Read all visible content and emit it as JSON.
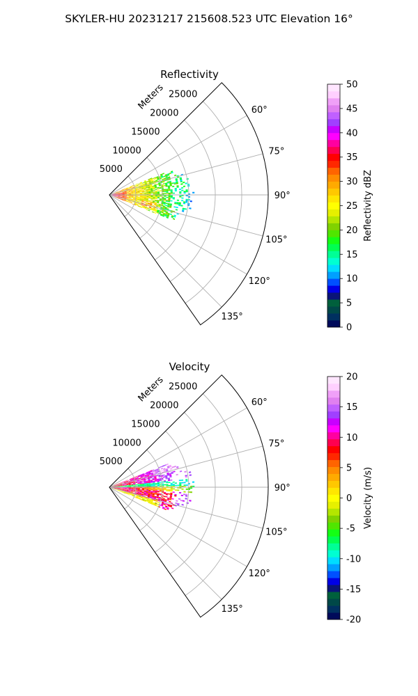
{
  "figure": {
    "title": "SKYLER-HU  20231217  215608.523 UTC Elevation 16°"
  },
  "chart_data": [
    {
      "type": "heatmap",
      "title": "Reflectivity",
      "projection": "polar-sector",
      "range_label": "Meters",
      "range_ticks": [
        5000,
        10000,
        15000,
        20000,
        25000
      ],
      "range_max": 30000,
      "theta_ticks": [
        "60°",
        "75°",
        "90°",
        "105°",
        "120°",
        "135°"
      ],
      "theta_tick_values": [
        60,
        75,
        90,
        105,
        120,
        135
      ],
      "theta_range": [
        45,
        145
      ],
      "grid": true,
      "colorbar": {
        "label": "Reflectivity dBZ",
        "ticks": [
          0,
          5,
          10,
          15,
          20,
          25,
          30,
          35,
          40,
          45,
          50
        ],
        "range": [
          0,
          50
        ],
        "colors": [
          "#000a5a",
          "#003060",
          "#004848",
          "#00603c",
          "#0a1478",
          "#0000e6",
          "#0050ff",
          "#00a0ff",
          "#00dcff",
          "#00ffd2",
          "#00ff96",
          "#00ff50",
          "#14ff14",
          "#50e600",
          "#80d200",
          "#b4e600",
          "#e6f000",
          "#ffff00",
          "#ffe600",
          "#ffc800",
          "#ffaa00",
          "#ff8c00",
          "#ff6400",
          "#ff2800",
          "#ff0000",
          "#ff0050",
          "#ff00a0",
          "#ff00ff",
          "#c800ff",
          "#a040ff",
          "#c060ff",
          "#e080f0",
          "#f0a0f8",
          "#ffd0ff",
          "#ffe6ff"
        ]
      },
      "data_extent": {
        "range_max_m": 16500,
        "theta_min": 68,
        "theta_max": 112
      }
    },
    {
      "type": "heatmap",
      "title": "Velocity",
      "projection": "polar-sector",
      "range_label": "Meters",
      "range_ticks": [
        5000,
        10000,
        15000,
        20000,
        25000
      ],
      "range_max": 30000,
      "theta_ticks": [
        "60°",
        "75°",
        "90°",
        "105°",
        "120°",
        "135°"
      ],
      "theta_tick_values": [
        60,
        75,
        90,
        105,
        120,
        135
      ],
      "theta_range": [
        45,
        145
      ],
      "grid": true,
      "colorbar": {
        "label": "Velocity (m/s)",
        "ticks": [
          -20,
          -15,
          -10,
          -5,
          0,
          5,
          10,
          15,
          20
        ],
        "range": [
          -20,
          20
        ],
        "colors": [
          "#000a5a",
          "#003060",
          "#004848",
          "#00603c",
          "#0a1478",
          "#0000e6",
          "#0050ff",
          "#00a0ff",
          "#00dcff",
          "#00ffd2",
          "#00ff96",
          "#00ff50",
          "#14ff14",
          "#50e600",
          "#80d200",
          "#b4e600",
          "#e6f000",
          "#ffff00",
          "#ffe600",
          "#ffc800",
          "#ffaa00",
          "#ff8c00",
          "#ff6400",
          "#ff2800",
          "#ff0000",
          "#ff0050",
          "#ff00a0",
          "#ff00ff",
          "#c800ff",
          "#a040ff",
          "#c060ff",
          "#e080f0",
          "#f0a0f8",
          "#ffd0ff",
          "#ffe6ff"
        ]
      },
      "data_extent": {
        "range_max_m": 16500,
        "theta_min": 68,
        "theta_max": 112
      }
    }
  ]
}
